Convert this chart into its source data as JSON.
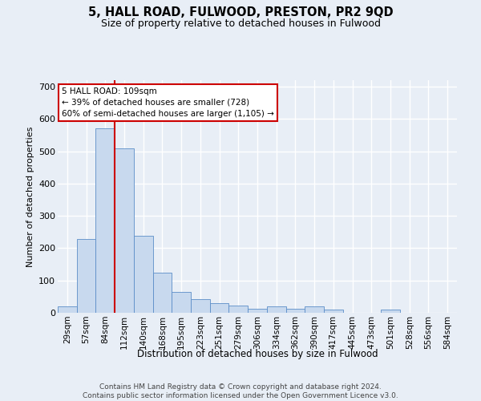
{
  "title": "5, HALL ROAD, FULWOOD, PRESTON, PR2 9QD",
  "subtitle": "Size of property relative to detached houses in Fulwood",
  "xlabel": "Distribution of detached houses by size in Fulwood",
  "ylabel": "Number of detached properties",
  "footer_line1": "Contains HM Land Registry data © Crown copyright and database right 2024.",
  "footer_line2": "Contains public sector information licensed under the Open Government Licence v3.0.",
  "bar_labels": [
    "29sqm",
    "57sqm",
    "84sqm",
    "112sqm",
    "140sqm",
    "168sqm",
    "195sqm",
    "223sqm",
    "251sqm",
    "279sqm",
    "306sqm",
    "334sqm",
    "362sqm",
    "390sqm",
    "417sqm",
    "445sqm",
    "473sqm",
    "501sqm",
    "528sqm",
    "556sqm",
    "584sqm"
  ],
  "bar_values": [
    20,
    228,
    570,
    510,
    238,
    125,
    65,
    42,
    30,
    22,
    12,
    20,
    12,
    20,
    10,
    0,
    0,
    10,
    0,
    0,
    0
  ],
  "bar_color": "#c8d9ee",
  "bar_edge_color": "#5b8dc8",
  "property_line_color": "#cc0000",
  "annotation_line1": "5 HALL ROAD: 109sqm",
  "annotation_line2": "← 39% of detached houses are smaller (728)",
  "annotation_line3": "60% of semi-detached houses are larger (1,105) →",
  "annotation_box_facecolor": "#ffffff",
  "annotation_box_edgecolor": "#cc0000",
  "ylim": [
    0,
    720
  ],
  "yticks": [
    0,
    100,
    200,
    300,
    400,
    500,
    600,
    700
  ],
  "background_color": "#e8eef6",
  "grid_color": "#ffffff",
  "title_fontsize": 10.5,
  "subtitle_fontsize": 9,
  "ylabel_fontsize": 8,
  "xlabel_fontsize": 8.5,
  "tick_fontsize": 7.5,
  "footer_fontsize": 6.5
}
